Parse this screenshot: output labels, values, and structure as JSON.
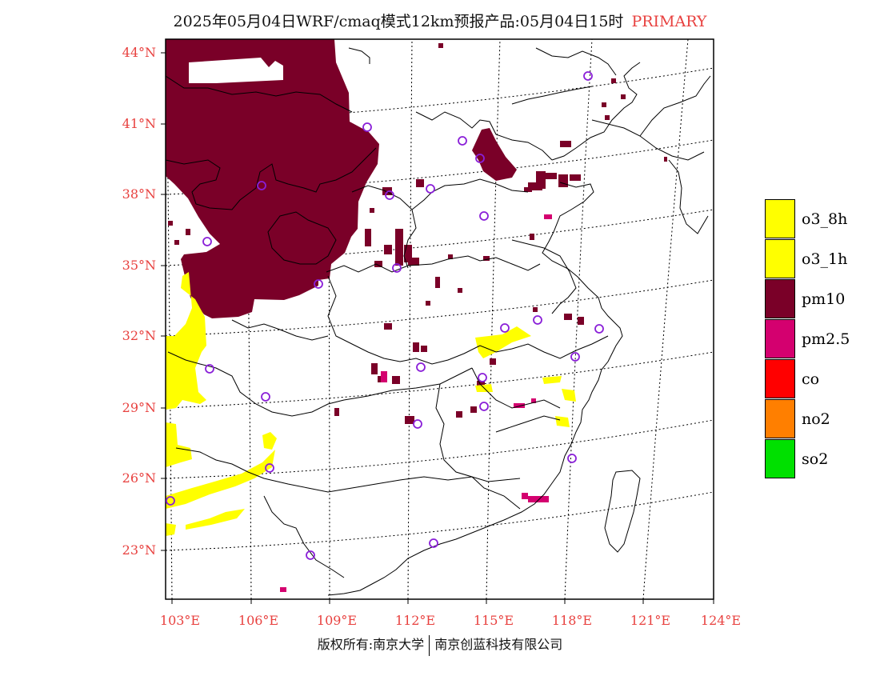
{
  "title": {
    "text": "2025年05月04日WRF/cmaq模式12km预报产品:05月04日15时",
    "tag": "PRIMARY"
  },
  "axes": {
    "lat_labels": [
      "44°N",
      "41°N",
      "38°N",
      "35°N",
      "32°N",
      "29°N",
      "26°N",
      "23°N"
    ],
    "lon_labels": [
      "103°E",
      "106°E",
      "109°E",
      "112°E",
      "115°E",
      "118°E",
      "121°E",
      "124°E"
    ]
  },
  "legend": [
    {
      "label": "o3_8h",
      "color": "#ffff00"
    },
    {
      "label": "o3_1h",
      "color": "#ffff00"
    },
    {
      "label": "pm10",
      "color": "#7a0028"
    },
    {
      "label": "pm2.5",
      "color": "#d4006f"
    },
    {
      "label": "co",
      "color": "#ff0000"
    },
    {
      "label": "no2",
      "color": "#ff7f00"
    },
    {
      "label": "so2",
      "color": "#00e000"
    }
  ],
  "colors": {
    "pm10": "#7a0028",
    "pm25": "#d4006f",
    "o3": "#ffff00",
    "station": "#8a1fd8",
    "axis_label": "#e8413f"
  },
  "copyright": {
    "left": "版权所有:南京大学",
    "right": "南京创蓝科技有限公司"
  }
}
